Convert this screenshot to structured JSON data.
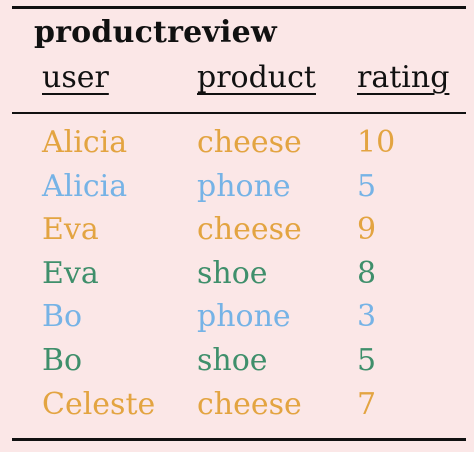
{
  "table": {
    "title": "productreview",
    "headers": {
      "user": "user",
      "product": "product",
      "rating": "rating"
    },
    "rows": [
      {
        "user": "Alicia",
        "product": "cheese",
        "rating": "10",
        "color": "#e3a441"
      },
      {
        "user": "Alicia",
        "product": "phone",
        "rating": "5",
        "color": "#76b3e6"
      },
      {
        "user": "Eva",
        "product": "cheese",
        "rating": "9",
        "color": "#e3a441"
      },
      {
        "user": "Eva",
        "product": "shoe",
        "rating": "8",
        "color": "#3f8f6b"
      },
      {
        "user": "Bo",
        "product": "phone",
        "rating": "3",
        "color": "#76b3e6"
      },
      {
        "user": "Bo",
        "product": "shoe",
        "rating": "5",
        "color": "#3f8f6b"
      },
      {
        "user": "Celeste",
        "product": "cheese",
        "rating": "7",
        "color": "#e3a441"
      }
    ]
  }
}
